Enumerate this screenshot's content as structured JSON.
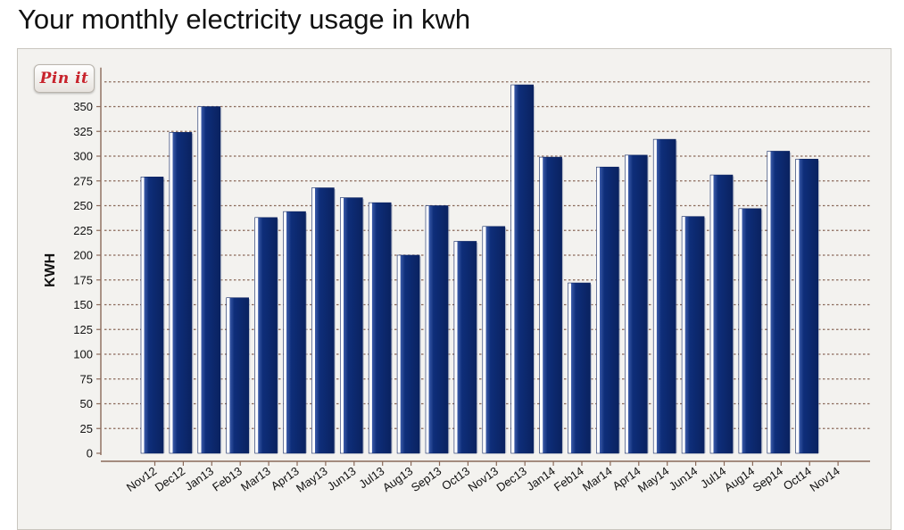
{
  "page": {
    "title": "Your monthly electricity usage in kwh"
  },
  "pin_button": {
    "label": "Pin it"
  },
  "chart_data": {
    "type": "bar",
    "title": "Your monthly electricity usage in kwh",
    "ylabel": "KWH",
    "xlabel": "",
    "ylim": [
      0,
      375
    ],
    "yticks": [
      0,
      25,
      50,
      75,
      100,
      125,
      150,
      175,
      200,
      225,
      250,
      275,
      300,
      325,
      350
    ],
    "grid": true,
    "categories": [
      "Nov12",
      "Dec12",
      "Jan13",
      "Feb13",
      "Mar13",
      "Apr13",
      "May13",
      "Jun13",
      "Jul13",
      "Aug13",
      "Sep13",
      "Oct13",
      "Nov13",
      "Dec13",
      "Jan14",
      "Feb14",
      "Mar14",
      "Apr14",
      "May14",
      "Jun14",
      "Jul14",
      "Aug14",
      "Sep14",
      "Oct14",
      "Nov14"
    ],
    "values": [
      279,
      324,
      350,
      157,
      238,
      244,
      268,
      258,
      253,
      200,
      250,
      214,
      229,
      372,
      299,
      172,
      289,
      301,
      317,
      239,
      281,
      247,
      305,
      297,
      null
    ],
    "colors": {
      "bar_fill": "#0e2e7a",
      "bar_highlight": "#ffffff",
      "grid": "#8a6a5a",
      "axis": "#8a6a5a"
    }
  }
}
